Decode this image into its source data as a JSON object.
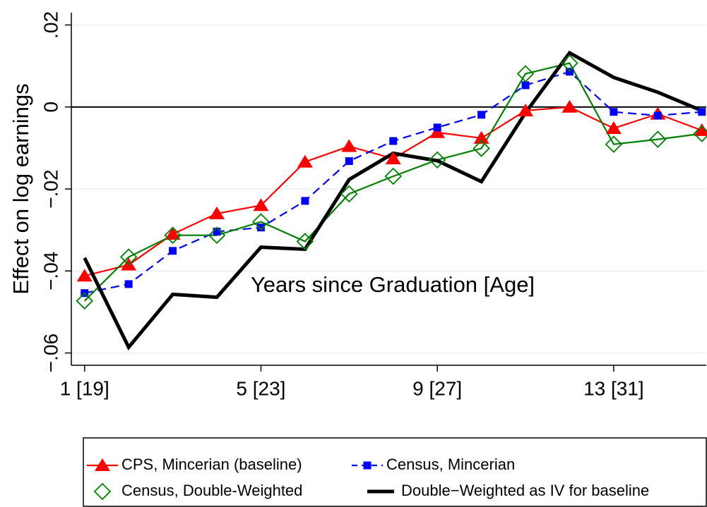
{
  "chart_data": {
    "type": "line",
    "x_label": "Years since Graduation [Age]",
    "y_label": "Effect on log earnings",
    "x": [
      1,
      2,
      3,
      4,
      5,
      6,
      7,
      8,
      9,
      10,
      11,
      12,
      13,
      14,
      15
    ],
    "xlim": [
      0.7,
      15.1
    ],
    "ylim": [
      -0.063,
      0.023
    ],
    "xticks": [
      {
        "value": 1,
        "label": "1 [19]"
      },
      {
        "value": 5,
        "label": "5 [23]"
      },
      {
        "value": 9,
        "label": "9 [27]"
      },
      {
        "value": 13,
        "label": "13 [31]"
      }
    ],
    "yticks": [
      {
        "value": -0.06,
        "label": "−.06"
      },
      {
        "value": -0.04,
        "label": "−.04"
      },
      {
        "value": -0.02,
        "label": "−.02"
      },
      0,
      {
        "value": 0.02,
        "label": ".02"
      }
    ],
    "grid": true,
    "zero_line": true,
    "legend_position": "bottom",
    "series": [
      {
        "name": "CPS, Mincerian (baseline)",
        "color": "#ff0000",
        "marker": "triangle",
        "dash": false,
        "values": [
          -0.0412,
          -0.0385,
          -0.031,
          -0.026,
          -0.024,
          -0.0134,
          -0.0096,
          -0.0126,
          -0.0062,
          -0.0076,
          -0.0009,
          0,
          -0.0052,
          -0.0017,
          -0.0057
        ]
      },
      {
        "name": "Census, Mincerian",
        "color": "#0000ff",
        "marker": "square",
        "dash": true,
        "values": [
          -0.0454,
          -0.0432,
          -0.0351,
          -0.0304,
          -0.0294,
          -0.0229,
          -0.0132,
          -0.0083,
          -0.005,
          -0.0019,
          0.0053,
          0.0086,
          -0.0012,
          -0.0021,
          -0.0012
        ]
      },
      {
        "name": "Census, Double-Weighted",
        "color": "#008000",
        "marker": "diamond",
        "dash": false,
        "values": [
          -0.0473,
          -0.0366,
          -0.0313,
          -0.0313,
          -0.028,
          -0.0328,
          -0.0212,
          -0.0169,
          -0.0129,
          -0.0101,
          0.0081,
          0.0107,
          -0.0091,
          -0.0079,
          -0.0065
        ]
      },
      {
        "name": "Double−Weighted as IV for baseline",
        "color": "#000000",
        "marker": "none",
        "dash": false,
        "values": [
          -0.0368,
          -0.0586,
          -0.0457,
          -0.0464,
          -0.0342,
          -0.0347,
          -0.0177,
          -0.0113,
          -0.0131,
          -0.0182,
          -0.0014,
          0.0132,
          0.0072,
          0.0036,
          -0.0009
        ]
      }
    ]
  }
}
